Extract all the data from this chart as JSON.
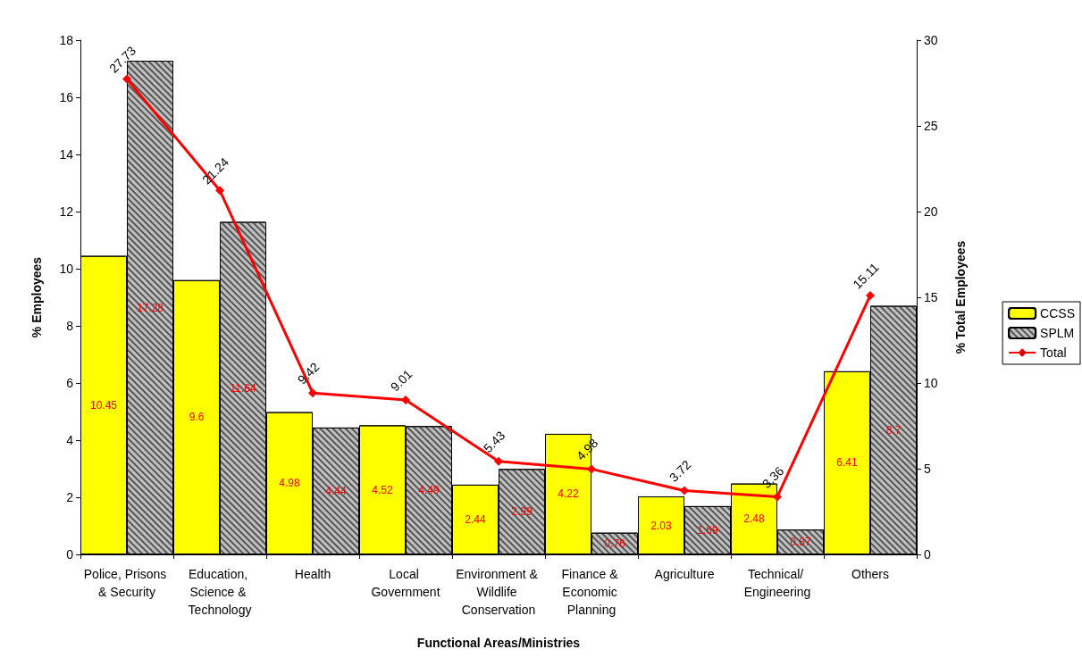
{
  "chart_data": {
    "type": "bar",
    "xlabel": "Functional Areas/Ministries",
    "ylabel": "% Employees",
    "y2label": "% Total Employees",
    "categories": [
      "Police, Prisons & Security",
      "Education, Science & Technology",
      "Health",
      "Local Government",
      "Environment & Wildlife Conservation",
      "Finance & Economic Planning",
      "Agriculture",
      "Technical/ Engineering",
      "Others"
    ],
    "series": [
      {
        "name": "CCSS",
        "color": "#ffff00",
        "values": [
          10.45,
          9.6,
          4.98,
          4.52,
          2.44,
          4.22,
          2.03,
          2.48,
          6.41
        ]
      },
      {
        "name": "SPLM",
        "color": "#c0c0c0",
        "values": [
          17.28,
          11.64,
          4.44,
          4.49,
          2.99,
          0.76,
          1.69,
          0.87,
          8.7
        ]
      },
      {
        "name": "Total",
        "type": "line",
        "axis": "y2",
        "color": "#ff0000",
        "values": [
          27.73,
          21.24,
          9.42,
          9.01,
          5.43,
          4.98,
          3.72,
          3.36,
          15.11
        ]
      }
    ],
    "ylim": [
      0,
      18
    ],
    "yticks": [
      0,
      2,
      4,
      6,
      8,
      10,
      12,
      14,
      16,
      18
    ],
    "y2lim": [
      0,
      30
    ],
    "y2ticks": [
      0,
      5,
      10,
      15,
      20,
      25,
      30
    ],
    "data_labels": true,
    "legend": "right",
    "grid": false,
    "marker": "diamond",
    "line_style": "solid"
  }
}
